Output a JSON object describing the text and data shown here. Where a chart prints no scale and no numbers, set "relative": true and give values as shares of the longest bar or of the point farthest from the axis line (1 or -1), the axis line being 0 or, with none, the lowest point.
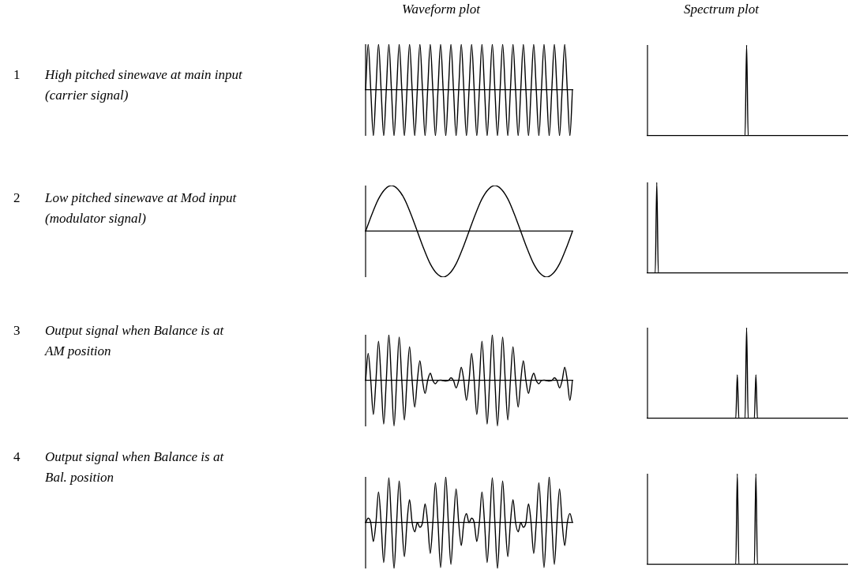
{
  "chart_data": [
    {
      "type": "other",
      "title": "1",
      "annotations": [
        "High pitched sinewave at main input",
        "(carrier signal)"
      ]
    },
    {
      "type": "line",
      "title": "Waveform plot",
      "relative": true,
      "categories": [
        null,
        null,
        null,
        null,
        null,
        null,
        null,
        null,
        null,
        null,
        null,
        null,
        null,
        null,
        null,
        null,
        null,
        null,
        null,
        null,
        null,
        null,
        null,
        null,
        null,
        null,
        null,
        null,
        null,
        null,
        null,
        null,
        null,
        null,
        null,
        null,
        null,
        null,
        null,
        null,
        null,
        null,
        null,
        null,
        null,
        null,
        null,
        null,
        null,
        null,
        null,
        null,
        null,
        null,
        null,
        null,
        null,
        null,
        null,
        null,
        null,
        null,
        null,
        null,
        null,
        null,
        null,
        null,
        null,
        null,
        null,
        null,
        null,
        null,
        null,
        null,
        null,
        null,
        null,
        null,
        null
      ],
      "series": [
        {
          "color": "#000000",
          "values": [
            0,
            1,
            0,
            -1,
            0,
            1,
            0,
            -1,
            0,
            1,
            0,
            -1,
            0,
            1,
            0,
            -1,
            0,
            1,
            0,
            -1,
            0,
            1,
            0,
            -1,
            0,
            1,
            0,
            -1,
            0,
            1,
            0,
            -1,
            0,
            1,
            0,
            -1,
            0,
            1,
            0,
            -1,
            0,
            1,
            0,
            -1,
            0,
            1,
            0,
            -1,
            0,
            1,
            0,
            -1,
            0,
            1,
            0,
            -1,
            0,
            1,
            0,
            -1,
            0,
            1,
            0,
            -1,
            0,
            1,
            0,
            -1,
            0,
            1,
            0,
            -1,
            0,
            1,
            0,
            -1,
            0,
            1,
            0,
            -1,
            0
          ]
        }
      ]
    },
    {
      "type": "line",
      "title": "Spectrum plot",
      "relative": true,
      "categories": [
        null,
        null,
        null,
        null,
        null,
        null,
        null,
        null,
        null,
        null,
        null,
        null,
        null,
        null,
        null,
        null,
        null,
        null,
        null,
        null,
        null,
        null,
        null,
        null,
        null,
        null,
        null,
        null,
        null,
        null,
        null,
        null,
        null,
        null,
        null,
        null,
        null,
        null,
        null,
        null,
        null,
        null,
        null,
        null,
        null,
        null,
        null,
        null,
        null,
        null,
        null,
        null,
        null,
        null,
        null,
        null,
        null,
        null,
        null,
        null,
        null,
        null,
        null,
        null,
        null,
        null,
        null,
        null,
        null,
        null,
        null,
        null,
        null,
        null,
        null,
        null,
        null,
        null,
        null,
        null,
        null,
        null,
        null,
        null,
        null,
        null,
        null,
        null,
        null,
        null,
        null,
        null,
        null,
        null,
        null,
        null,
        null,
        null,
        null,
        null,
        null,
        null,
        null,
        null,
        null,
        null,
        null,
        null,
        null,
        null,
        null,
        null,
        null,
        null,
        null,
        null,
        null,
        null,
        null,
        null,
        null,
        null,
        null,
        null,
        null,
        null,
        null,
        null,
        null,
        null
      ],
      "series": [
        {
          "color": "#000000",
          "values": [
            0,
            0,
            0,
            0,
            0,
            0,
            0,
            0,
            0,
            0,
            0,
            0,
            0,
            0,
            0,
            0,
            0,
            0,
            0,
            0,
            0,
            0,
            0,
            0,
            0,
            0,
            0,
            0,
            0,
            0,
            0,
            0,
            0,
            0,
            0,
            0,
            0,
            0,
            0,
            0,
            0,
            0,
            0,
            0,
            0,
            0,
            0,
            0,
            0,
            0,
            0,
            0,
            0,
            0,
            0,
            0,
            0,
            0,
            0,
            0,
            0,
            0,
            0,
            0,
            1,
            0,
            0,
            0,
            0,
            0,
            0,
            0,
            0,
            0,
            0,
            0,
            0,
            0,
            0,
            0,
            0,
            0,
            0,
            0,
            0,
            0,
            0,
            0,
            0,
            0,
            0,
            0,
            0,
            0,
            0,
            0,
            0,
            0,
            0,
            0,
            0,
            0,
            0,
            0,
            0,
            0,
            0,
            0,
            0,
            0,
            0,
            0,
            0,
            0,
            0,
            0,
            0,
            0,
            0,
            0,
            0,
            0,
            0,
            0,
            0,
            0,
            0,
            0,
            0,
            0
          ]
        }
      ]
    },
    {
      "type": "other",
      "title": "2",
      "annotations": [
        "Low pitched sinewave at Mod input",
        "(modulator signal)"
      ]
    },
    {
      "type": "line",
      "relative": true,
      "categories": [
        null,
        null,
        null,
        null,
        null,
        null,
        null,
        null,
        null,
        null,
        null,
        null,
        null,
        null,
        null,
        null,
        null,
        null,
        null,
        null,
        null,
        null,
        null,
        null,
        null,
        null,
        null,
        null,
        null,
        null,
        null,
        null,
        null
      ],
      "series": [
        {
          "color": "#000000",
          "values": [
            0,
            0.38,
            0.71,
            0.92,
            1,
            0.92,
            0.71,
            0.38,
            0,
            -0.38,
            -0.71,
            -0.92,
            -1,
            -0.92,
            -0.71,
            -0.38,
            0,
            0.38,
            0.71,
            0.92,
            1,
            0.92,
            0.71,
            0.38,
            0,
            -0.38,
            -0.71,
            -0.92,
            -1,
            -0.92,
            -0.71,
            -0.38,
            0
          ]
        }
      ]
    },
    {
      "type": "line",
      "relative": true,
      "categories": [
        null,
        null,
        null,
        null,
        null,
        null,
        null,
        null,
        null,
        null,
        null,
        null,
        null,
        null,
        null,
        null,
        null,
        null,
        null,
        null,
        null,
        null,
        null,
        null,
        null,
        null,
        null,
        null,
        null,
        null,
        null,
        null,
        null,
        null,
        null,
        null,
        null,
        null,
        null,
        null,
        null,
        null,
        null,
        null,
        null,
        null,
        null,
        null,
        null,
        null,
        null,
        null,
        null,
        null,
        null,
        null,
        null,
        null,
        null,
        null,
        null,
        null,
        null,
        null,
        null,
        null,
        null,
        null,
        null,
        null,
        null,
        null,
        null,
        null,
        null,
        null,
        null,
        null,
        null,
        null,
        null,
        null,
        null,
        null,
        null,
        null,
        null,
        null,
        null,
        null,
        null,
        null,
        null,
        null,
        null,
        null,
        null,
        null,
        null,
        null,
        null,
        null,
        null,
        null,
        null,
        null,
        null,
        null,
        null,
        null,
        null,
        null,
        null,
        null,
        null,
        null,
        null,
        null,
        null,
        null,
        null,
        null,
        null,
        null,
        null,
        null,
        null,
        null,
        null,
        null
      ],
      "series": [
        {
          "color": "#000000",
          "values": [
            0,
            0,
            0,
            0,
            0,
            0,
            1,
            0,
            0,
            0,
            0,
            0,
            0,
            0,
            0,
            0,
            0,
            0,
            0,
            0,
            0,
            0,
            0,
            0,
            0,
            0,
            0,
            0,
            0,
            0,
            0,
            0,
            0,
            0,
            0,
            0,
            0,
            0,
            0,
            0,
            0,
            0,
            0,
            0,
            0,
            0,
            0,
            0,
            0,
            0,
            0,
            0,
            0,
            0,
            0,
            0,
            0,
            0,
            0,
            0,
            0,
            0,
            0,
            0,
            0,
            0,
            0,
            0,
            0,
            0,
            0,
            0,
            0,
            0,
            0,
            0,
            0,
            0,
            0,
            0,
            0,
            0,
            0,
            0,
            0,
            0,
            0,
            0,
            0,
            0,
            0,
            0,
            0,
            0,
            0,
            0,
            0,
            0,
            0,
            0,
            0,
            0,
            0,
            0,
            0,
            0,
            0,
            0,
            0,
            0,
            0,
            0,
            0,
            0,
            0,
            0,
            0,
            0,
            0,
            0,
            0,
            0,
            0,
            0,
            0,
            0,
            0,
            0,
            0,
            0
          ]
        }
      ]
    },
    {
      "type": "other",
      "title": "3",
      "annotations": [
        "Output signal when Balance is at",
        "AM position"
      ]
    },
    {
      "type": "line",
      "relative": true,
      "categories": [
        null,
        null,
        null,
        null,
        null,
        null,
        null,
        null,
        null,
        null,
        null,
        null,
        null,
        null,
        null,
        null,
        null,
        null,
        null,
        null,
        null,
        null,
        null,
        null,
        null,
        null,
        null,
        null,
        null,
        null,
        null,
        null,
        null,
        null,
        null,
        null,
        null,
        null,
        null,
        null,
        null,
        null,
        null,
        null,
        null,
        null,
        null,
        null,
        null,
        null,
        null,
        null,
        null,
        null,
        null,
        null,
        null,
        null,
        null,
        null,
        null,
        null,
        null,
        null,
        null,
        null,
        null,
        null,
        null,
        null,
        null,
        null,
        null,
        null,
        null,
        null,
        null,
        null,
        null,
        null,
        null
      ],
      "series": [
        {
          "color": "#000000",
          "values": [
            0,
            0.59,
            0,
            -0.74,
            0,
            0.86,
            0,
            -0.95,
            0,
            1,
            0,
            -0.99,
            0,
            0.95,
            0,
            -0.86,
            0,
            0.74,
            0,
            -0.58,
            0,
            0.43,
            0,
            -0.28,
            0,
            0.16,
            0,
            -0.07,
            0,
            0.01,
            0,
            -0.01,
            0,
            0.06,
            0,
            -0.16,
            0,
            0.29,
            0,
            -0.43,
            0,
            0.59,
            0,
            -0.74,
            0,
            0.86,
            0,
            -0.95,
            0,
            1,
            0,
            -0.99,
            0,
            0.95,
            0,
            -0.86,
            0,
            0.74,
            0,
            -0.58,
            0,
            0.43,
            0,
            -0.28,
            0,
            0.16,
            0,
            -0.07,
            0,
            0.01,
            0,
            -0.01,
            0,
            0.06,
            0,
            -0.16,
            0,
            0.29,
            0,
            -0.43,
            0
          ]
        }
      ]
    },
    {
      "type": "line",
      "relative": true,
      "categories": [
        null,
        null,
        null,
        null,
        null,
        null,
        null,
        null,
        null,
        null,
        null,
        null,
        null,
        null,
        null,
        null,
        null,
        null,
        null,
        null,
        null,
        null,
        null,
        null,
        null,
        null,
        null,
        null,
        null,
        null,
        null,
        null,
        null,
        null,
        null,
        null,
        null,
        null,
        null,
        null,
        null,
        null,
        null,
        null,
        null,
        null,
        null,
        null,
        null,
        null,
        null,
        null,
        null,
        null,
        null,
        null,
        null,
        null,
        null,
        null,
        null,
        null,
        null,
        null,
        null,
        null,
        null,
        null,
        null,
        null,
        null,
        null,
        null,
        null,
        null,
        null,
        null,
        null,
        null,
        null,
        null,
        null,
        null,
        null,
        null,
        null,
        null,
        null,
        null,
        null,
        null,
        null,
        null,
        null,
        null,
        null,
        null,
        null,
        null,
        null,
        null,
        null,
        null,
        null,
        null,
        null,
        null,
        null,
        null,
        null,
        null,
        null,
        null,
        null,
        null,
        null,
        null,
        null,
        null,
        null,
        null,
        null,
        null,
        null,
        null,
        null,
        null,
        null,
        null,
        null
      ],
      "series": [
        {
          "color": "#000000",
          "values": [
            0,
            0,
            0,
            0,
            0,
            0,
            0,
            0,
            0,
            0,
            0,
            0,
            0,
            0,
            0,
            0,
            0,
            0,
            0,
            0,
            0,
            0,
            0,
            0,
            0,
            0,
            0,
            0,
            0,
            0,
            0,
            0,
            0,
            0,
            0,
            0,
            0,
            0,
            0,
            0,
            0,
            0,
            0,
            0,
            0,
            0,
            0,
            0,
            0,
            0,
            0,
            0,
            0,
            0,
            0,
            0,
            0,
            0,
            0.48,
            0,
            0,
            0,
            0,
            0,
            1,
            0,
            0,
            0,
            0,
            0,
            0.48,
            0,
            0,
            0,
            0,
            0,
            0,
            0,
            0,
            0,
            0,
            0,
            0,
            0,
            0,
            0,
            0,
            0,
            0,
            0,
            0,
            0,
            0,
            0,
            0,
            0,
            0,
            0,
            0,
            0,
            0,
            0,
            0,
            0,
            0,
            0,
            0,
            0,
            0,
            0,
            0,
            0,
            0,
            0,
            0,
            0,
            0,
            0,
            0,
            0,
            0,
            0,
            0,
            0,
            0,
            0,
            0,
            0,
            0,
            0
          ]
        }
      ]
    },
    {
      "type": "other",
      "title": "4",
      "annotations": [
        "Output signal when Balance is at",
        "Bal. position"
      ]
    },
    {
      "type": "line",
      "relative": true,
      "categories": [
        null,
        null,
        null,
        null,
        null,
        null,
        null,
        null,
        null,
        null,
        null,
        null,
        null,
        null,
        null,
        null,
        null,
        null,
        null,
        null,
        null,
        null,
        null,
        null,
        null,
        null,
        null,
        null,
        null,
        null,
        null,
        null,
        null,
        null,
        null,
        null,
        null,
        null,
        null,
        null,
        null,
        null,
        null,
        null,
        null,
        null,
        null,
        null,
        null,
        null,
        null,
        null,
        null,
        null,
        null,
        null,
        null,
        null,
        null,
        null,
        null,
        null,
        null,
        null,
        null,
        null,
        null,
        null,
        null,
        null,
        null,
        null,
        null,
        null,
        null,
        null,
        null,
        null,
        null,
        null,
        null
      ],
      "series": [
        {
          "color": "#000000",
          "values": [
            0,
            0.1,
            0,
            -0.41,
            0,
            0.67,
            0,
            -0.87,
            0,
            0.98,
            0,
            -1,
            0,
            0.91,
            0,
            -0.74,
            0,
            0.5,
            0,
            -0.2,
            0,
            -0.1,
            0,
            0.41,
            0,
            -0.67,
            0,
            0.87,
            0,
            -0.98,
            0,
            1,
            0,
            -0.91,
            0,
            0.74,
            0,
            -0.5,
            0,
            0.2,
            0,
            0.1,
            0,
            -0.41,
            0,
            0.67,
            0,
            -0.87,
            0,
            0.98,
            0,
            -1,
            0,
            0.91,
            0,
            -0.74,
            0,
            0.5,
            0,
            -0.2,
            0,
            -0.1,
            0,
            0.41,
            0,
            -0.67,
            0,
            0.87,
            0,
            -0.98,
            0,
            1,
            0,
            -0.91,
            0,
            0.74,
            0,
            -0.5,
            0,
            0.2,
            0
          ]
        }
      ]
    },
    {
      "type": "line",
      "relative": true,
      "categories": [
        null,
        null,
        null,
        null,
        null,
        null,
        null,
        null,
        null,
        null,
        null,
        null,
        null,
        null,
        null,
        null,
        null,
        null,
        null,
        null,
        null,
        null,
        null,
        null,
        null,
        null,
        null,
        null,
        null,
        null,
        null,
        null,
        null,
        null,
        null,
        null,
        null,
        null,
        null,
        null,
        null,
        null,
        null,
        null,
        null,
        null,
        null,
        null,
        null,
        null,
        null,
        null,
        null,
        null,
        null,
        null,
        null,
        null,
        null,
        null,
        null,
        null,
        null,
        null,
        null,
        null,
        null,
        null,
        null,
        null,
        null,
        null,
        null,
        null,
        null,
        null,
        null,
        null,
        null,
        null,
        null,
        null,
        null,
        null,
        null,
        null,
        null,
        null,
        null,
        null,
        null,
        null,
        null,
        null,
        null,
        null,
        null,
        null,
        null,
        null,
        null,
        null,
        null,
        null,
        null,
        null,
        null,
        null,
        null,
        null,
        null,
        null,
        null,
        null,
        null,
        null,
        null,
        null,
        null,
        null,
        null,
        null,
        null,
        null,
        null,
        null,
        null,
        null,
        null,
        null
      ],
      "series": [
        {
          "color": "#000000",
          "values": [
            0,
            0,
            0,
            0,
            0,
            0,
            0,
            0,
            0,
            0,
            0,
            0,
            0,
            0,
            0,
            0,
            0,
            0,
            0,
            0,
            0,
            0,
            0,
            0,
            0,
            0,
            0,
            0,
            0,
            0,
            0,
            0,
            0,
            0,
            0,
            0,
            0,
            0,
            0,
            0,
            0,
            0,
            0,
            0,
            0,
            0,
            0,
            0,
            0,
            0,
            0,
            0,
            0,
            0,
            0,
            0,
            0,
            0,
            1,
            0,
            0,
            0,
            0,
            0,
            0,
            0,
            0,
            0,
            0,
            0,
            1,
            0,
            0,
            0,
            0,
            0,
            0,
            0,
            0,
            0,
            0,
            0,
            0,
            0,
            0,
            0,
            0,
            0,
            0,
            0,
            0,
            0,
            0,
            0,
            0,
            0,
            0,
            0,
            0,
            0,
            0,
            0,
            0,
            0,
            0,
            0,
            0,
            0,
            0,
            0,
            0,
            0,
            0,
            0,
            0,
            0,
            0,
            0,
            0,
            0,
            0,
            0,
            0,
            0,
            0,
            0,
            0,
            0,
            0,
            0
          ]
        }
      ]
    }
  ]
}
